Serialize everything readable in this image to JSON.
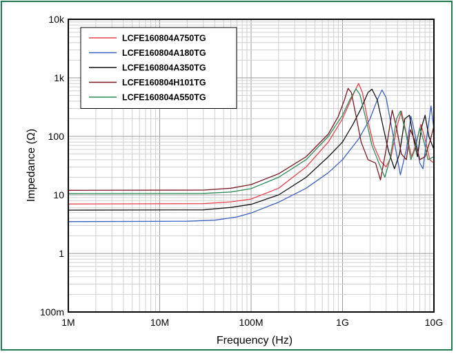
{
  "chart_data": {
    "type": "line",
    "xlabel": "Frequency (Hz)",
    "ylabel": "Impedance (Ω)",
    "xscale": "log",
    "yscale": "log",
    "xlim": [
      1000000,
      10000000000
    ],
    "ylim": [
      0.1,
      10000
    ],
    "x_tick_labels": [
      "1M",
      "10M",
      "100M",
      "1G",
      "10G"
    ],
    "y_tick_labels": [
      "100m",
      "1",
      "10",
      "100",
      "1k",
      "10k"
    ],
    "grid": true,
    "legend_position": "top-left",
    "series": [
      {
        "name": "LCFE160804A750TG",
        "color": "#e8404a",
        "points": [
          [
            1000000,
            7
          ],
          [
            30000000,
            7.1
          ],
          [
            60000000,
            7.6
          ],
          [
            100000000,
            8.5
          ],
          [
            200000000,
            13
          ],
          [
            400000000,
            30
          ],
          [
            700000000,
            80
          ],
          [
            1000000000,
            200
          ],
          [
            1200000000,
            380
          ],
          [
            1400000000,
            650
          ],
          [
            1500000000,
            800
          ],
          [
            1650000000,
            560
          ],
          [
            1900000000,
            180
          ],
          [
            2200000000,
            70
          ],
          [
            2600000000,
            38
          ],
          [
            3000000000,
            30
          ],
          [
            3400000000,
            45
          ],
          [
            4000000000,
            160
          ],
          [
            4400000000,
            270
          ],
          [
            5000000000,
            110
          ],
          [
            5700000000,
            45
          ],
          [
            6300000000,
            70
          ],
          [
            7200000000,
            160
          ],
          [
            8000000000,
            90
          ],
          [
            9000000000,
            40
          ],
          [
            10000000000,
            35
          ]
        ]
      },
      {
        "name": "LCFE160804A180TG",
        "color": "#3b5fc0",
        "points": [
          [
            1000000,
            3.5
          ],
          [
            20000000,
            3.55
          ],
          [
            40000000,
            3.7
          ],
          [
            70000000,
            4.2
          ],
          [
            100000000,
            4.9
          ],
          [
            200000000,
            7.5
          ],
          [
            400000000,
            13
          ],
          [
            700000000,
            24
          ],
          [
            1000000000,
            40
          ],
          [
            1500000000,
            90
          ],
          [
            2000000000,
            200
          ],
          [
            2400000000,
            420
          ],
          [
            2700000000,
            620
          ],
          [
            3000000000,
            460
          ],
          [
            3400000000,
            160
          ],
          [
            3900000000,
            50
          ],
          [
            4300000000,
            22
          ],
          [
            5000000000,
            60
          ],
          [
            5600000000,
            220
          ],
          [
            6200000000,
            110
          ],
          [
            7000000000,
            35
          ],
          [
            7600000000,
            28
          ],
          [
            8500000000,
            120
          ],
          [
            9300000000,
            330
          ],
          [
            10000000000,
            130
          ]
        ]
      },
      {
        "name": "LCFE160804A350TG",
        "color": "#111111",
        "points": [
          [
            1000000,
            5.5
          ],
          [
            30000000,
            5.55
          ],
          [
            60000000,
            6.1
          ],
          [
            100000000,
            6.9
          ],
          [
            200000000,
            10
          ],
          [
            400000000,
            20
          ],
          [
            700000000,
            45
          ],
          [
            1000000000,
            80
          ],
          [
            1300000000,
            160
          ],
          [
            1600000000,
            300
          ],
          [
            1900000000,
            560
          ],
          [
            2100000000,
            640
          ],
          [
            2400000000,
            420
          ],
          [
            2800000000,
            140
          ],
          [
            3200000000,
            55
          ],
          [
            3700000000,
            28
          ],
          [
            4200000000,
            50
          ],
          [
            4800000000,
            200
          ],
          [
            5400000000,
            230
          ],
          [
            6000000000,
            90
          ],
          [
            6600000000,
            45
          ],
          [
            7300000000,
            140
          ],
          [
            8000000000,
            230
          ],
          [
            8800000000,
            100
          ],
          [
            10000000000,
            60
          ]
        ]
      },
      {
        "name": "LCFE160804H101TG",
        "color": "#7a1620",
        "points": [
          [
            1000000,
            12
          ],
          [
            30000000,
            12.1
          ],
          [
            60000000,
            13
          ],
          [
            100000000,
            15
          ],
          [
            200000000,
            23
          ],
          [
            400000000,
            45
          ],
          [
            700000000,
            110
          ],
          [
            900000000,
            220
          ],
          [
            1050000000,
            420
          ],
          [
            1150000000,
            660
          ],
          [
            1250000000,
            560
          ],
          [
            1400000000,
            230
          ],
          [
            1600000000,
            80
          ],
          [
            1900000000,
            40
          ],
          [
            2300000000,
            35
          ],
          [
            2600000000,
            18
          ],
          [
            3000000000,
            60
          ],
          [
            3500000000,
            280
          ],
          [
            3900000000,
            140
          ],
          [
            4400000000,
            50
          ],
          [
            5000000000,
            40
          ],
          [
            5500000000,
            130
          ],
          [
            6100000000,
            90
          ],
          [
            7000000000,
            40
          ],
          [
            8000000000,
            45
          ],
          [
            9200000000,
            90
          ],
          [
            10000000000,
            150
          ]
        ]
      },
      {
        "name": "LCFE160804A550TG",
        "color": "#2e8b57",
        "points": [
          [
            1000000,
            10.5
          ],
          [
            30000000,
            10.6
          ],
          [
            60000000,
            11.2
          ],
          [
            100000000,
            12.8
          ],
          [
            200000000,
            20
          ],
          [
            400000000,
            40
          ],
          [
            700000000,
            100
          ],
          [
            1000000000,
            230
          ],
          [
            1200000000,
            420
          ],
          [
            1400000000,
            650
          ],
          [
            1550000000,
            520
          ],
          [
            1800000000,
            200
          ],
          [
            2100000000,
            70
          ],
          [
            2500000000,
            35
          ],
          [
            2900000000,
            20
          ],
          [
            3300000000,
            40
          ],
          [
            3900000000,
            200
          ],
          [
            4300000000,
            270
          ],
          [
            4900000000,
            120
          ],
          [
            5600000000,
            40
          ],
          [
            6200000000,
            60
          ],
          [
            7000000000,
            140
          ],
          [
            7800000000,
            80
          ],
          [
            8600000000,
            40
          ],
          [
            10000000000,
            45
          ]
        ]
      }
    ]
  }
}
